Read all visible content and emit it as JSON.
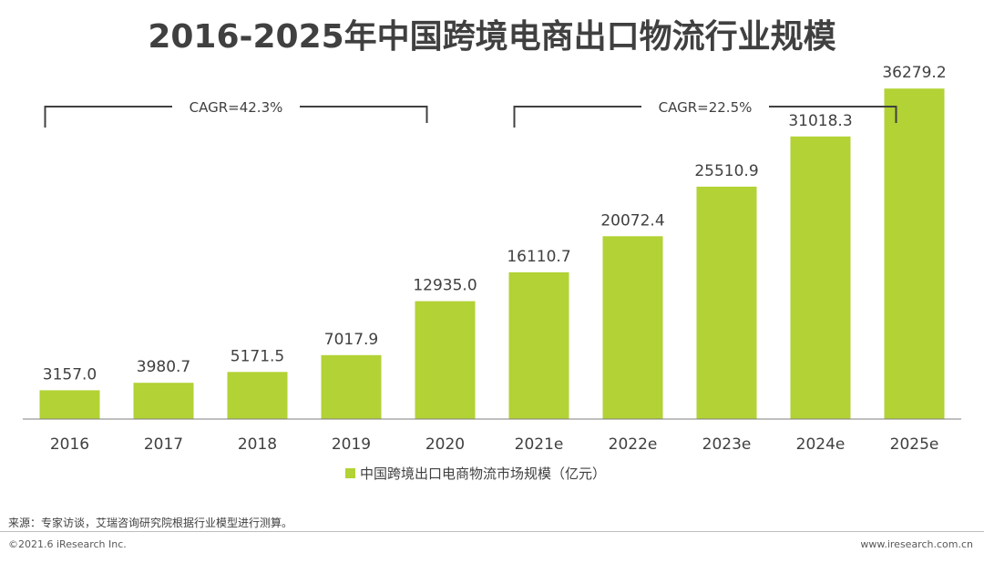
{
  "chart_data": {
    "type": "bar",
    "title": "2016-2025年中国跨境电商出口物流行业规模",
    "categories": [
      "2016",
      "2017",
      "2018",
      "2019",
      "2020",
      "2021e",
      "2022e",
      "2023e",
      "2024e",
      "2025e"
    ],
    "series": [
      {
        "name": "中国跨境出口电商物流市场规模（亿元）",
        "values": [
          3157.0,
          3980.7,
          5171.5,
          7017.9,
          12935.0,
          16110.7,
          20072.4,
          25510.9,
          31018.3,
          36279.2
        ],
        "labels": [
          "3157.0",
          "3980.7",
          "5171.5",
          "7017.9",
          "12935.0",
          "16110.7",
          "20072.4",
          "25510.9",
          "31018.3",
          "36279.2"
        ]
      }
    ],
    "ylim": [
      0,
      40000
    ],
    "grid": false,
    "legend": "bottom-center",
    "color": "#b2d235",
    "annotations": [
      {
        "text": "CAGR=42.3%",
        "from": "2016",
        "to": "2020"
      },
      {
        "text": "CAGR=22.5%",
        "from": "2021e",
        "to": "2025e"
      }
    ]
  },
  "footer": {
    "source": "来源：专家访谈，艾瑞咨询研究院根据行业模型进行测算。",
    "copyright": "©2021.6 iResearch Inc.",
    "website": "www.iresearch.com.cn"
  }
}
